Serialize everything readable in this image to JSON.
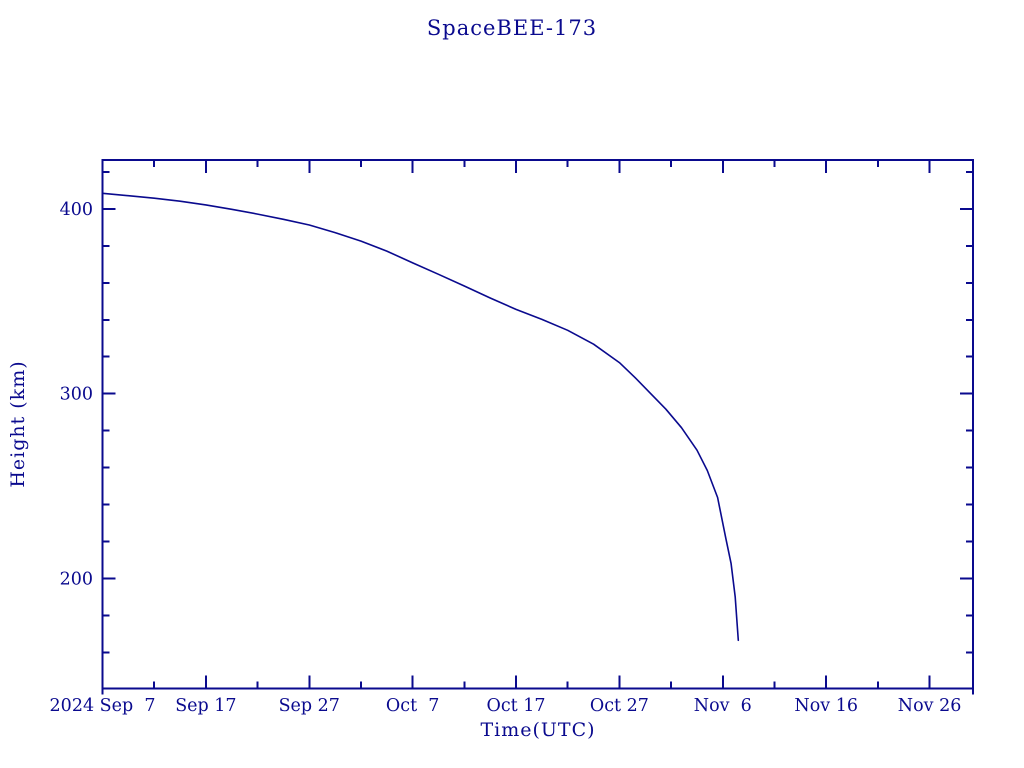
{
  "page": {
    "background": "#ffffff",
    "accent_color": "#0a0a8e"
  },
  "chart_data": {
    "type": "line",
    "title": "SpaceBEE-173",
    "xlabel": "Time(UTC)",
    "ylabel": "Height (km)",
    "grid": false,
    "legend": "none",
    "line_color": "#0a0a8e",
    "frame_color": "#0a0a8e",
    "x_axis": {
      "epoch": "2024 Sep 7",
      "day_range": [
        0,
        84.2
      ],
      "major_ticks": [
        {
          "day": 0,
          "label": "2024 Sep  7"
        },
        {
          "day": 10,
          "label": "Sep 17"
        },
        {
          "day": 20,
          "label": "Sep 27"
        },
        {
          "day": 30,
          "label": "Oct  7"
        },
        {
          "day": 40,
          "label": "Oct 17"
        },
        {
          "day": 50,
          "label": "Oct 27"
        },
        {
          "day": 60,
          "label": "Nov  6"
        },
        {
          "day": 70,
          "label": "Nov 16"
        },
        {
          "day": 80,
          "label": "Nov 26"
        }
      ],
      "minor_tick_days": [
        5,
        15,
        25,
        35,
        45,
        55,
        65,
        75
      ]
    },
    "y_axis": {
      "range": [
        140.4,
        426.5
      ],
      "major_ticks": [
        {
          "value": 200,
          "label": "200"
        },
        {
          "value": 300,
          "label": "300"
        },
        {
          "value": 400,
          "label": "400"
        }
      ],
      "minor_tick_values": [
        160,
        180,
        220,
        240,
        260,
        280,
        320,
        340,
        360,
        380,
        420
      ]
    },
    "series": [
      {
        "name": "height_km",
        "points": [
          {
            "day": 0,
            "date": "Sep 7",
            "height_km": 408.5
          },
          {
            "day": 2.5,
            "date": "Sep 9",
            "height_km": 407.2
          },
          {
            "day": 5,
            "date": "Sep 12",
            "height_km": 405.8
          },
          {
            "day": 7.5,
            "date": "Sep 14",
            "height_km": 404.2
          },
          {
            "day": 10,
            "date": "Sep 17",
            "height_km": 402.2
          },
          {
            "day": 12.5,
            "date": "Sep 19",
            "height_km": 399.8
          },
          {
            "day": 15,
            "date": "Sep 22",
            "height_km": 397.2
          },
          {
            "day": 17.5,
            "date": "Sep 24",
            "height_km": 394.4
          },
          {
            "day": 20,
            "date": "Sep 27",
            "height_km": 391.3
          },
          {
            "day": 22.5,
            "date": "Sep 29",
            "height_km": 387.2
          },
          {
            "day": 25,
            "date": "Oct 2",
            "height_km": 382.6
          },
          {
            "day": 27.5,
            "date": "Oct 4",
            "height_km": 377.2
          },
          {
            "day": 30,
            "date": "Oct 7",
            "height_km": 370.8
          },
          {
            "day": 32.5,
            "date": "Oct 9",
            "height_km": 364.6
          },
          {
            "day": 35,
            "date": "Oct 12",
            "height_km": 358.3
          },
          {
            "day": 37.5,
            "date": "Oct 14",
            "height_km": 351.8
          },
          {
            "day": 40,
            "date": "Oct 17",
            "height_km": 345.6
          },
          {
            "day": 42.5,
            "date": "Oct 19",
            "height_km": 340.2
          },
          {
            "day": 45,
            "date": "Oct 22",
            "height_km": 334.3
          },
          {
            "day": 47.5,
            "date": "Oct 24",
            "height_km": 326.8
          },
          {
            "day": 50,
            "date": "Oct 27",
            "height_km": 316.8
          },
          {
            "day": 51.5,
            "date": "Oct 28",
            "height_km": 308.8
          },
          {
            "day": 53,
            "date": "Oct 30",
            "height_km": 300.2
          },
          {
            "day": 54.5,
            "date": "Oct 31",
            "height_km": 291.6
          },
          {
            "day": 56,
            "date": "Nov 2",
            "height_km": 281.6
          },
          {
            "day": 57.5,
            "date": "Nov 3",
            "height_km": 269.4
          },
          {
            "day": 58.5,
            "date": "Nov 4",
            "height_km": 258.4
          },
          {
            "day": 59.5,
            "date": "Nov 5",
            "height_km": 243.8
          },
          {
            "day": 60.3,
            "date": "Nov 6",
            "height_km": 221.5
          },
          {
            "day": 60.8,
            "date": "Nov 6",
            "height_km": 208.0
          },
          {
            "day": 61.2,
            "date": "Nov 7",
            "height_km": 190.0
          },
          {
            "day": 61.5,
            "date": "Nov 7",
            "height_km": 166.5
          }
        ]
      }
    ]
  }
}
